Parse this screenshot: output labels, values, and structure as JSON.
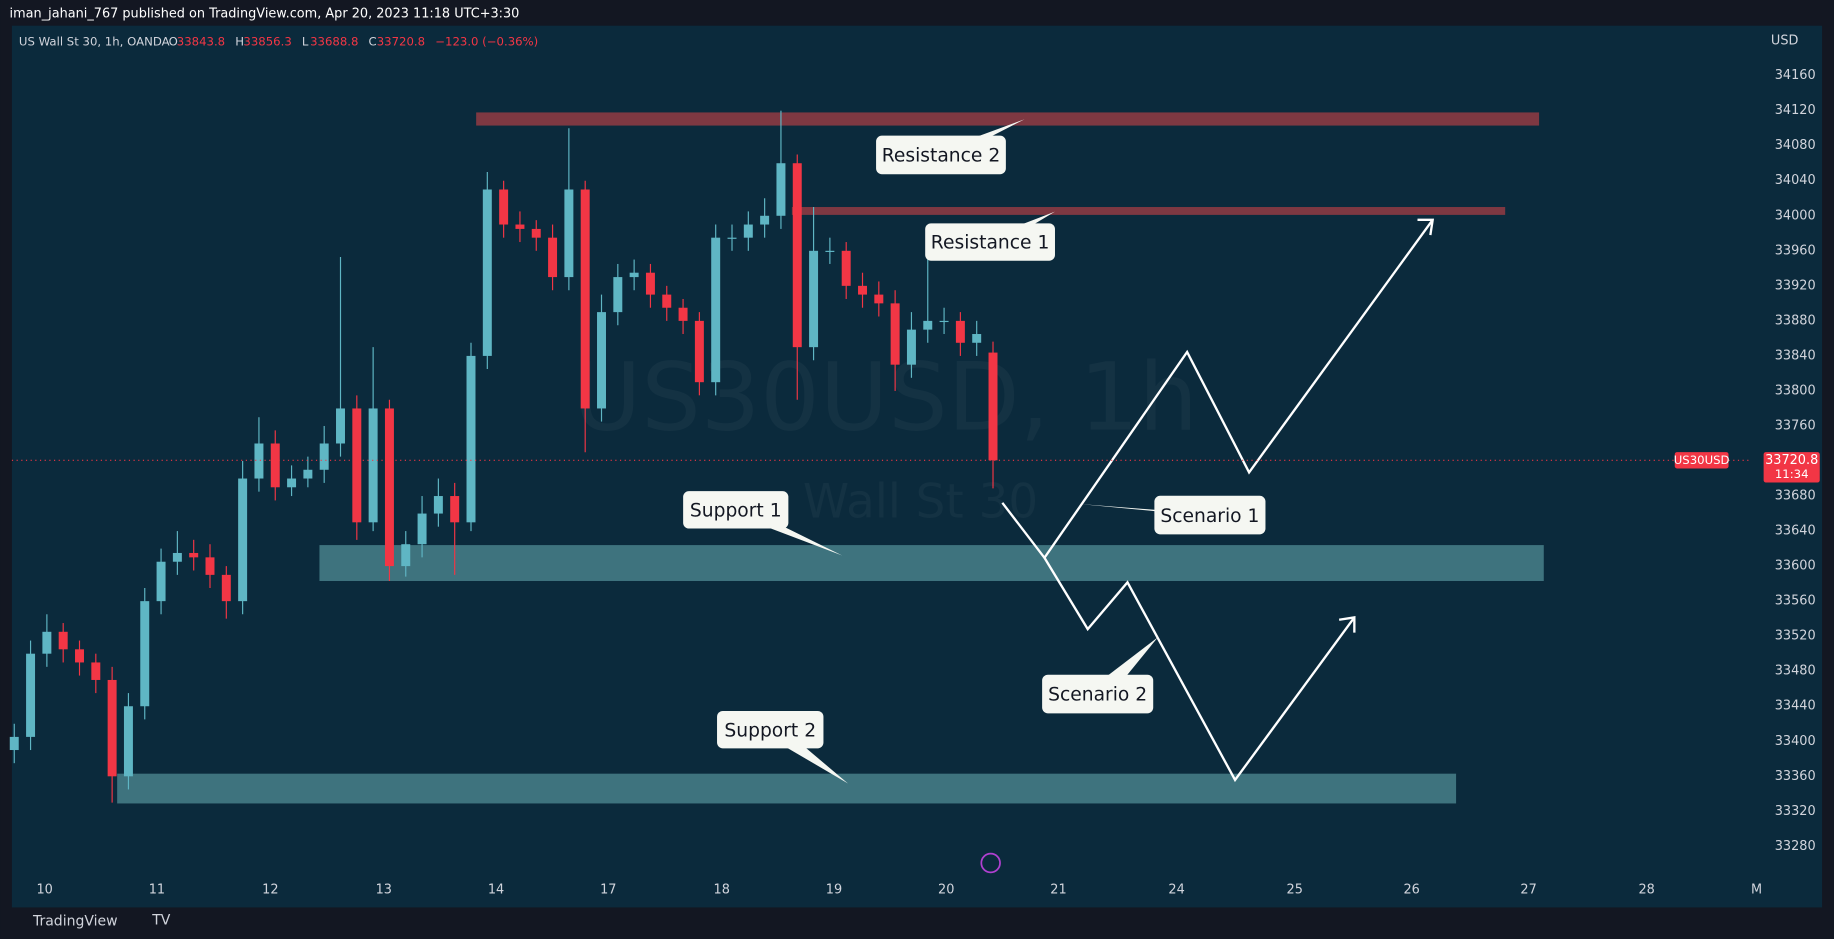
{
  "header": {
    "publisher": "iman_jahani_767 published on TradingView.com, Apr 20, 2023 11:18 UTC+3:30"
  },
  "footer": {
    "brand": "TradingView"
  },
  "chart_data": {
    "type": "candlestick",
    "symbol": "US Wall St 30, 1h, OANDA",
    "legend_keys": [
      "O",
      "H",
      "L",
      "C"
    ],
    "change": "−123.0 (−0.36%)",
    "watermark": [
      "US30USD, 1h",
      "Wall St 30"
    ],
    "currency_label": "USD",
    "price_tag": "US30USD",
    "countdown": "11:34",
    "x_tick_labels": [
      "10",
      "11",
      "12",
      "13",
      "14",
      "17",
      "18",
      "19",
      "20",
      "21",
      "24",
      "25",
      "26",
      "27",
      "28",
      "M"
    ],
    "up_color": "#5fb6c4",
    "down_color": "#f23645",
    "ylim": [
      33245,
      34217
    ],
    "yticks": [
      33280,
      33320,
      33360,
      33400,
      33440,
      33480,
      33520,
      33560,
      33600,
      33640,
      33680,
      33720,
      33760,
      33800,
      33840,
      33880,
      33920,
      33960,
      34000,
      34040,
      34080,
      34120,
      34160
    ],
    "grid": false,
    "open": [
      33390,
      33405,
      33500,
      33525,
      33505,
      33490,
      33470,
      33360,
      33440,
      33560,
      33605,
      33615,
      33610,
      33590,
      33560,
      33700,
      33740,
      33690,
      33700,
      33710,
      33740,
      33780,
      33650,
      33780,
      33600,
      33625,
      33660,
      33680,
      33650,
      33840,
      34030,
      33990,
      33985,
      33975,
      33930,
      34030,
      33780,
      33890,
      33930,
      33935,
      33910,
      33895,
      33880,
      33810,
      33975,
      33975,
      33990,
      34000,
      34060,
      33850,
      33960,
      33960,
      33920,
      33910,
      33900,
      33830,
      33870,
      33880,
      33880,
      33855,
      33843.8
    ],
    "high": [
      33420,
      33515,
      33545,
      33535,
      33515,
      33500,
      33485,
      33455,
      33575,
      33620,
      33640,
      33630,
      33625,
      33600,
      33720,
      33770,
      33755,
      33715,
      33725,
      33760,
      33953,
      33795,
      33850,
      33790,
      33640,
      33680,
      33700,
      33695,
      33855,
      34050,
      34040,
      34005,
      33995,
      33990,
      34100,
      34040,
      33910,
      33945,
      33950,
      33945,
      33920,
      33905,
      33890,
      33990,
      33990,
      34005,
      34020,
      34120,
      34070,
      34010,
      33975,
      33970,
      33935,
      33925,
      33915,
      33890,
      33960,
      33895,
      33890,
      33880,
      33856.3
    ],
    "low": [
      33375,
      33390,
      33485,
      33490,
      33475,
      33455,
      33330,
      33345,
      33425,
      33545,
      33590,
      33595,
      33575,
      33540,
      33545,
      33685,
      33675,
      33680,
      33690,
      33695,
      33725,
      33630,
      33640,
      33583,
      33588,
      33610,
      33645,
      33590,
      33640,
      33825,
      33975,
      33970,
      33960,
      33915,
      33915,
      33730,
      33765,
      33875,
      33915,
      33895,
      33880,
      33865,
      33795,
      33795,
      33960,
      33960,
      33975,
      33985,
      33790,
      33835,
      33945,
      33905,
      33895,
      33885,
      33800,
      33815,
      33855,
      33865,
      33840,
      33840,
      33688.8
    ],
    "close": [
      33405,
      33500,
      33525,
      33505,
      33490,
      33470,
      33360,
      33440,
      33560,
      33605,
      33615,
      33610,
      33590,
      33560,
      33700,
      33740,
      33690,
      33700,
      33710,
      33740,
      33780,
      33650,
      33780,
      33600,
      33625,
      33660,
      33680,
      33650,
      33840,
      34030,
      33990,
      33985,
      33975,
      33930,
      34030,
      33780,
      33890,
      33930,
      33935,
      33910,
      33895,
      33880,
      33810,
      33975,
      33975,
      33990,
      34000,
      34060,
      33850,
      33960,
      33960,
      33920,
      33910,
      33900,
      33830,
      33870,
      33880,
      33880,
      33855,
      33865,
      33720.8
    ],
    "zones": [
      {
        "name": "Resistance 2",
        "top": 34118,
        "bottom": 34103,
        "color": "#7e3842"
      },
      {
        "name": "Resistance 1",
        "top": 34010,
        "bottom": 34001,
        "color": "#7e3842"
      },
      {
        "name": "Support 1",
        "top": 33624,
        "bottom": 33583,
        "color": "#3e737e"
      },
      {
        "name": "Support 2",
        "top": 33363,
        "bottom": 33329,
        "color": "#3e737e"
      }
    ],
    "scenarios": [
      "Scenario 1",
      "Scenario 2"
    ]
  }
}
